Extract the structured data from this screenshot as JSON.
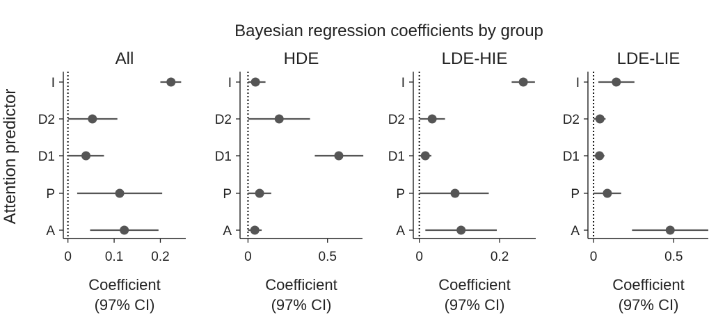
{
  "chart_data": {
    "type": "scatter",
    "subtype": "forest-plot (point estimate with credible interval)",
    "suptitle": "Bayesian regression coefficients by group",
    "ylabel": "Attention predictor",
    "xlabel_line1": "Coefficient",
    "xlabel_line2": "(97% CI)",
    "categories": [
      "I",
      "D2",
      "D1",
      "P",
      "A"
    ],
    "reference_line": 0,
    "colors": {
      "marker": "#555555",
      "line": "#555555",
      "axis": "#222222"
    },
    "panels": [
      {
        "title": "All",
        "xlim": [
          -0.01,
          0.255
        ],
        "xticks": [
          0,
          0.1,
          0.2
        ],
        "xtick_labels": [
          "0",
          "0.1",
          "0.2"
        ],
        "estimates": [
          {
            "predictor": "I",
            "mean": 0.223,
            "lower": 0.2,
            "upper": 0.245
          },
          {
            "predictor": "D2",
            "mean": 0.053,
            "lower": 0.0,
            "upper": 0.107
          },
          {
            "predictor": "D1",
            "mean": 0.039,
            "lower": 0.0,
            "upper": 0.078
          },
          {
            "predictor": "P",
            "mean": 0.112,
            "lower": 0.02,
            "upper": 0.204
          },
          {
            "predictor": "A",
            "mean": 0.122,
            "lower": 0.048,
            "upper": 0.196
          }
        ]
      },
      {
        "title": "HDE",
        "xlim": [
          -0.05,
          0.72
        ],
        "xticks": [
          0,
          0.5
        ],
        "xtick_labels": [
          "0",
          "0.5"
        ],
        "estimates": [
          {
            "predictor": "I",
            "mean": 0.047,
            "lower": 0.0,
            "upper": 0.11
          },
          {
            "predictor": "D2",
            "mean": 0.196,
            "lower": 0.0,
            "upper": 0.39
          },
          {
            "predictor": "D1",
            "mean": 0.571,
            "lower": 0.42,
            "upper": 0.725
          },
          {
            "predictor": "P",
            "mean": 0.073,
            "lower": 0.0,
            "upper": 0.146
          },
          {
            "predictor": "A",
            "mean": 0.043,
            "lower": 0.0,
            "upper": 0.086
          }
        ]
      },
      {
        "title": "LDE-HIE",
        "xlim": [
          -0.015,
          0.29
        ],
        "xticks": [
          0,
          0.2
        ],
        "xtick_labels": [
          "0",
          "0.2"
        ],
        "estimates": [
          {
            "predictor": "I",
            "mean": 0.259,
            "lower": 0.23,
            "upper": 0.288
          },
          {
            "predictor": "D2",
            "mean": 0.032,
            "lower": 0.0,
            "upper": 0.064
          },
          {
            "predictor": "D1",
            "mean": 0.015,
            "lower": 0.0,
            "upper": 0.03
          },
          {
            "predictor": "P",
            "mean": 0.089,
            "lower": 0.0,
            "upper": 0.173
          },
          {
            "predictor": "A",
            "mean": 0.104,
            "lower": 0.015,
            "upper": 0.193
          }
        ]
      },
      {
        "title": "LDE-LIE",
        "xlim": [
          -0.035,
          0.72
        ],
        "xticks": [
          0,
          0.5
        ],
        "xtick_labels": [
          "0",
          "0.5"
        ],
        "estimates": [
          {
            "predictor": "I",
            "mean": 0.142,
            "lower": 0.03,
            "upper": 0.255
          },
          {
            "predictor": "D2",
            "mean": 0.04,
            "lower": 0.0,
            "upper": 0.075
          },
          {
            "predictor": "D1",
            "mean": 0.037,
            "lower": 0.0,
            "upper": 0.068
          },
          {
            "predictor": "P",
            "mean": 0.086,
            "lower": 0.0,
            "upper": 0.172
          },
          {
            "predictor": "A",
            "mean": 0.478,
            "lower": 0.24,
            "upper": 0.72
          }
        ]
      }
    ]
  }
}
